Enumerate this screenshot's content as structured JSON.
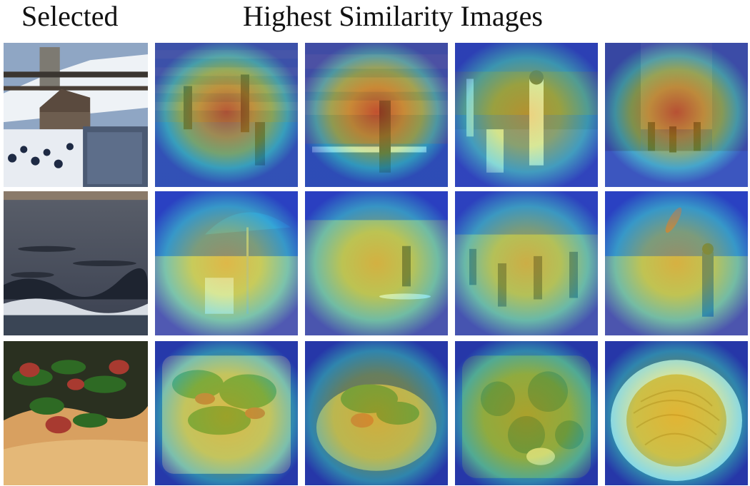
{
  "headers": {
    "selected": "Selected",
    "similar": "Highest Similarity Images"
  },
  "colors": {
    "heat_hot": "#e04018",
    "heat_warm": "#f0b020",
    "heat_mid": "#a8e050",
    "heat_cool": "#30c8e6",
    "heat_cold": "#2840c8"
  },
  "rows": [
    {
      "name": "ski-resort",
      "selected": "ski-resort-photo",
      "similar": [
        "grandstand-crowd-photo",
        "tennis-match-photo",
        "baseball-batter-photo",
        "street-cyclists-photo"
      ]
    },
    {
      "name": "ocean",
      "selected": "ocean-waves-photo",
      "similar": [
        "beach-umbrella-photo",
        "paddleboarder-photo",
        "beach-crowd-photo",
        "kite-flyer-photo"
      ]
    },
    {
      "name": "food",
      "selected": "flatbread-arugula-photo",
      "similar": [
        "pizza-greens-photo",
        "open-sandwich-photo",
        "broccoli-dish-photo",
        "spaghetti-plate-photo"
      ]
    }
  ]
}
